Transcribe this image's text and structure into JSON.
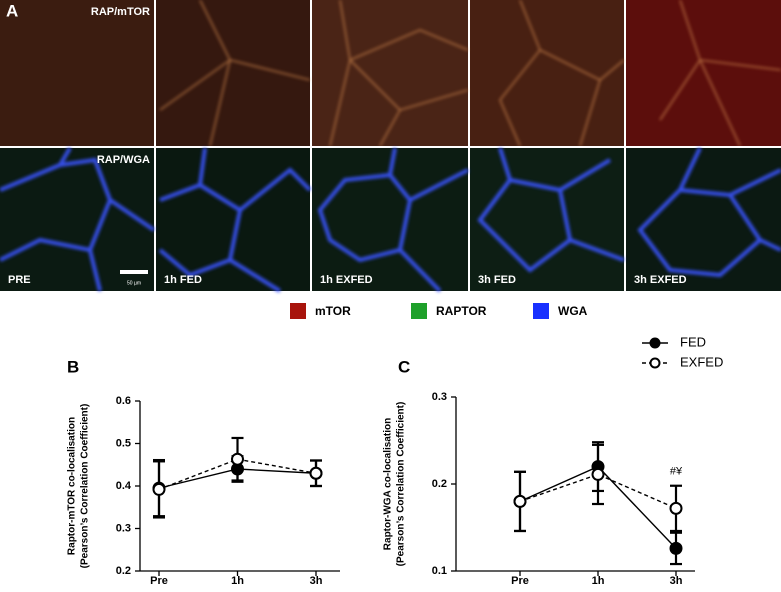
{
  "figure": {
    "panel_label": "A",
    "rows": [
      "RAP/mTOR",
      "RAP/WGA"
    ],
    "columns": [
      "PRE",
      "1h FED",
      "1h EXFED",
      "3h FED",
      "3h EXFED"
    ],
    "scale_bar": "50 µm",
    "legend": [
      {
        "name": "mTOR",
        "color": "#a8140c"
      },
      {
        "name": "RAPTOR",
        "color": "#1ea02a"
      },
      {
        "name": "WGA",
        "color": "#1830ff"
      }
    ]
  },
  "chart_data": [
    {
      "type": "line",
      "panel": "B",
      "ylabel": [
        "Raptor-mTOR co-localisation",
        "(Pearson’s Correlation Coefficient)"
      ],
      "categories": [
        "Pre",
        "1h",
        "3h"
      ],
      "ylim": [
        0.2,
        0.6
      ],
      "yticks": [
        0.2,
        0.3,
        0.4,
        0.5,
        0.6
      ],
      "legend": false,
      "series": [
        {
          "color": "#000000",
          "line_style": "solid",
          "marker": "filled",
          "values": [
            0.395,
            0.44,
            0.43
          ],
          "errors": [
            0.066,
            0.03,
            0.03
          ]
        },
        {
          "color": "#000000",
          "line_style": "dashed",
          "marker": "open",
          "values": [
            0.392,
            0.463,
            0.43
          ],
          "errors": [
            0.066,
            0.05,
            0.03
          ]
        }
      ]
    },
    {
      "type": "line",
      "panel": "C",
      "ylabel": [
        "Raptor-WGA co-localisation",
        "(Pearson’s Correlation Coefficient)"
      ],
      "categories": [
        "Pre",
        "1h",
        "3h"
      ],
      "ylim": [
        0.1,
        0.3
      ],
      "yticks": [
        0.1,
        0.2,
        0.3
      ],
      "legend": true,
      "annotation": "#¥",
      "series": [
        {
          "name": "FED",
          "color": "#000000",
          "line_style": "solid",
          "marker": "filled",
          "values": [
            0.18,
            0.22,
            0.126
          ],
          "errors": [
            0.034,
            0.028,
            0.018
          ]
        },
        {
          "name": "EXFED",
          "color": "#000000",
          "line_style": "dashed",
          "marker": "open",
          "values": [
            0.18,
            0.211,
            0.172
          ],
          "errors": [
            0.034,
            0.034,
            0.026
          ]
        }
      ]
    }
  ]
}
